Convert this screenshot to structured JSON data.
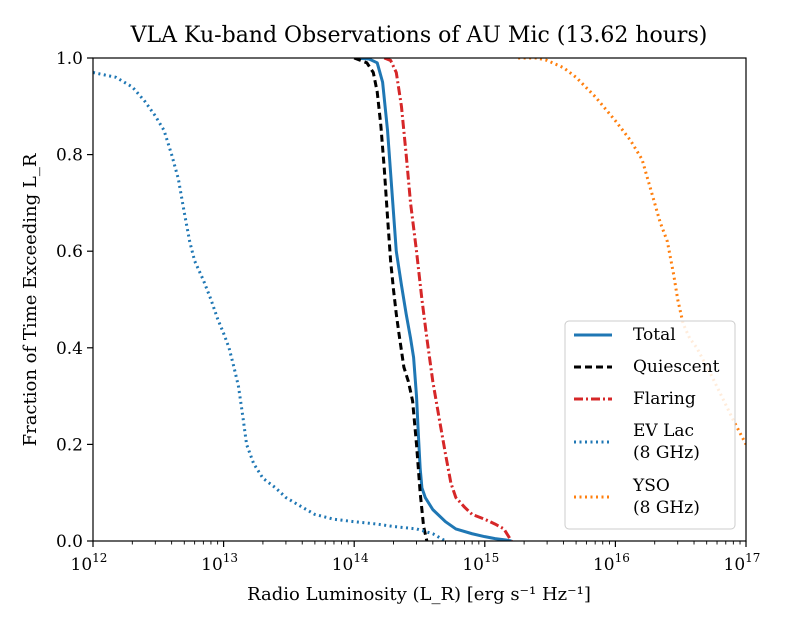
{
  "chart_data": {
    "type": "line",
    "title": "VLA Ku-band Observations of AU Mic (13.62 hours)",
    "xlabel": "Radio Luminosity (L_R) [erg s⁻¹ Hz⁻¹]",
    "ylabel": "Fraction of Time Exceeding L_R",
    "xscale": "log",
    "xlim": [
      1000000000000.0,
      1e+17
    ],
    "ylim": [
      0.0,
      1.0
    ],
    "x_tick_exponents": [
      12,
      13,
      14,
      15,
      16,
      17
    ],
    "y_ticks": [
      "0.0",
      "0.2",
      "0.4",
      "0.6",
      "0.8",
      "1.0"
    ],
    "legend_position": "lower-right",
    "series": [
      {
        "name": "Total",
        "label_lines": [
          "Total"
        ],
        "color": "#1f77b4",
        "style": "solid",
        "x": [
          100000000000000.0,
          130000000000000.0,
          150000000000000.0,
          165000000000000.0,
          180000000000000.0,
          195000000000000.0,
          210000000000000.0,
          230000000000000.0,
          250000000000000.0,
          270000000000000.0,
          285000000000000.0,
          300000000000000.0,
          310000000000000.0,
          320000000000000.0,
          330000000000000.0,
          350000000000000.0,
          400000000000000.0,
          500000000000000.0,
          600000000000000.0,
          800000000000000.0,
          1000000000000000.0,
          1200000000000000.0,
          1450000000000000.0,
          1600000000000000.0
        ],
        "y": [
          1.0,
          0.998,
          0.99,
          0.95,
          0.85,
          0.72,
          0.6,
          0.53,
          0.47,
          0.42,
          0.38,
          0.3,
          0.22,
          0.15,
          0.11,
          0.09,
          0.065,
          0.04,
          0.025,
          0.015,
          0.009,
          0.005,
          0.002,
          0.0
        ]
      },
      {
        "name": "Quiescent",
        "label_lines": [
          "Quiescent"
        ],
        "color": "#000000",
        "style": "dashed",
        "x": [
          100000000000000.0,
          125000000000000.0,
          140000000000000.0,
          150000000000000.0,
          160000000000000.0,
          170000000000000.0,
          180000000000000.0,
          190000000000000.0,
          200000000000000.0,
          210000000000000.0,
          220000000000000.0,
          240000000000000.0,
          260000000000000.0,
          280000000000000.0,
          300000000000000.0,
          320000000000000.0,
          340000000000000.0,
          360000000000000.0
        ],
        "y": [
          1.0,
          0.99,
          0.97,
          0.93,
          0.86,
          0.77,
          0.67,
          0.58,
          0.52,
          0.47,
          0.43,
          0.36,
          0.33,
          0.29,
          0.2,
          0.1,
          0.03,
          0.0
        ]
      },
      {
        "name": "Flaring",
        "label_lines": [
          "Flaring"
        ],
        "color": "#d62728",
        "style": "dashdot",
        "x": [
          170000000000000.0,
          190000000000000.0,
          210000000000000.0,
          230000000000000.0,
          250000000000000.0,
          270000000000000.0,
          300000000000000.0,
          330000000000000.0,
          360000000000000.0,
          400000000000000.0,
          450000000000000.0,
          500000000000000.0,
          550000000000000.0,
          600000000000000.0,
          700000000000000.0,
          800000000000000.0,
          1000000000000000.0,
          1200000000000000.0,
          1400000000000000.0,
          1500000000000000.0,
          1600000000000000.0
        ],
        "y": [
          1.0,
          0.995,
          0.97,
          0.9,
          0.8,
          0.7,
          0.6,
          0.5,
          0.42,
          0.33,
          0.25,
          0.18,
          0.12,
          0.09,
          0.07,
          0.055,
          0.045,
          0.035,
          0.025,
          0.012,
          0.0
        ]
      },
      {
        "name": "EV Lac (8 GHz)",
        "label_lines": [
          "EV Lac",
          "(8 GHz)"
        ],
        "color": "#1f77b4",
        "style": "dotted",
        "x": [
          1000000000000.0,
          1500000000000.0,
          2000000000000.0,
          2500000000000.0,
          3000000000000.0,
          3500000000000.0,
          4000000000000.0,
          4500000000000.0,
          5000000000000.0,
          5500000000000.0,
          6000000000000.0,
          7000000000000.0,
          8000000000000.0,
          9000000000000.0,
          10000000000000.0,
          11000000000000.0,
          12000000000000.0,
          13000000000000.0,
          14000000000000.0,
          15000000000000.0,
          17000000000000.0,
          20000000000000.0,
          25000000000000.0,
          30000000000000.0,
          40000000000000.0,
          50000000000000.0,
          70000000000000.0,
          100000000000000.0,
          150000000000000.0,
          200000000000000.0,
          300000000000000.0,
          400000000000000.0,
          500000000000000.0
        ],
        "y": [
          0.97,
          0.96,
          0.94,
          0.91,
          0.88,
          0.85,
          0.8,
          0.75,
          0.68,
          0.62,
          0.58,
          0.54,
          0.5,
          0.46,
          0.43,
          0.4,
          0.36,
          0.32,
          0.26,
          0.2,
          0.16,
          0.13,
          0.11,
          0.09,
          0.07,
          0.055,
          0.045,
          0.04,
          0.035,
          0.03,
          0.025,
          0.015,
          0.0
        ]
      },
      {
        "name": "YSO (8 GHz)",
        "label_lines": [
          "YSO",
          "(8 GHz)"
        ],
        "color": "#ff7f0e",
        "style": "dotted",
        "x": [
          1800000000000000.0,
          2500000000000000.0,
          3000000000000000.0,
          4000000000000000.0,
          5000000000000000.0,
          7000000000000000.0,
          1e+16,
          1.3e+16,
          1.6e+16,
          1.9e+16,
          2.2e+16,
          2.5e+16,
          2.8e+16,
          3e+16,
          3.3e+16,
          3.7e+16,
          4.2e+16,
          4.8e+16,
          5.5e+16,
          6.5e+16,
          8e+16,
          1e+17
        ],
        "y": [
          1.0,
          1.0,
          0.995,
          0.98,
          0.96,
          0.92,
          0.87,
          0.83,
          0.79,
          0.72,
          0.66,
          0.62,
          0.55,
          0.5,
          0.45,
          0.42,
          0.4,
          0.37,
          0.34,
          0.3,
          0.25,
          0.2
        ]
      }
    ]
  }
}
